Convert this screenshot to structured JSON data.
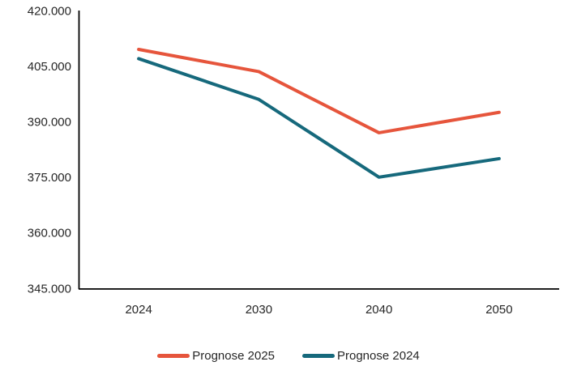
{
  "chart_data": {
    "type": "line",
    "title": "",
    "xlabel": "",
    "ylabel": "",
    "categories": [
      "2024",
      "2030",
      "2040",
      "2050"
    ],
    "series": [
      {
        "name": "Prognose 2025",
        "color": "#E6553C",
        "values": [
          409500,
          403500,
          387000,
          392500
        ]
      },
      {
        "name": "Prognose 2024",
        "color": "#16697C",
        "values": [
          407000,
          396000,
          375000,
          380000
        ]
      }
    ],
    "ylim": [
      345000,
      420000
    ],
    "y_ticks": [
      {
        "value": 345000,
        "label": "345.000"
      },
      {
        "value": 360000,
        "label": "360.000"
      },
      {
        "value": 375000,
        "label": "375.000"
      },
      {
        "value": 390000,
        "label": "390.000"
      },
      {
        "value": 405000,
        "label": "405.000"
      },
      {
        "value": 420000,
        "label": "420.000"
      }
    ],
    "grid": false,
    "legend_position": "bottom",
    "axis_color": "#000000",
    "text_color": "#262626",
    "line_width": 4
  }
}
